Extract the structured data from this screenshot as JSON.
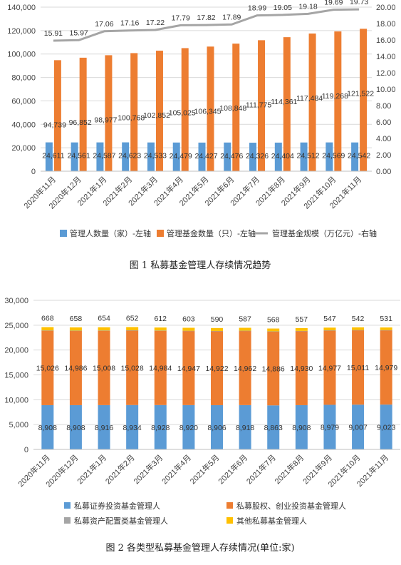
{
  "chart_data": [
    {
      "type": "bar+line",
      "title": "",
      "caption": "图 1  私募基金管理人存续情况趋势",
      "categories": [
        "2020年11月",
        "2020年12月",
        "2021年1月",
        "2021年2月",
        "2021年3月",
        "2021年4月",
        "2021年5月",
        "2021年6月",
        "2021年7月",
        "2021年8月",
        "2021年9月",
        "2021年10月",
        "2021年11月"
      ],
      "series": [
        {
          "name": "管理人数量（家）-左轴",
          "type": "bar",
          "axis": "left",
          "color": "#5B9BD5",
          "values": [
            24611,
            24561,
            24587,
            24623,
            24533,
            24479,
            24427,
            24476,
            24326,
            24404,
            24512,
            24569,
            24542
          ],
          "labels": [
            "24,611",
            "24,561",
            "24,587",
            "24,623",
            "24,533",
            "24,479",
            "24,427",
            "24,476",
            "24,326",
            "24,404",
            "24,512",
            "24,569",
            "24,542"
          ]
        },
        {
          "name": "管理基金数量（只）-左轴",
          "type": "bar",
          "axis": "left",
          "color": "#ED7D31",
          "values": [
            94739,
            96852,
            98977,
            100768,
            102852,
            105025,
            106345,
            108848,
            111775,
            114361,
            117484,
            119268,
            121522
          ],
          "labels": [
            "94,739",
            "96,852",
            "98,977",
            "100,768",
            "102,852",
            "105,025",
            "106,345",
            "108,848",
            "111,775",
            "114,361",
            "117,484",
            "119,268",
            "121,522"
          ]
        },
        {
          "name": "管理基金规模（万亿元）-右轴",
          "type": "line",
          "axis": "right",
          "color": "#A5A5A5",
          "values": [
            15.91,
            15.97,
            17.06,
            17.16,
            17.22,
            17.79,
            17.82,
            17.89,
            18.99,
            19.05,
            19.18,
            19.69,
            19.73
          ],
          "labels": [
            "15.91",
            "15.97",
            "17.06",
            "17.16",
            "17.22",
            "17.79",
            "17.82",
            "17.89",
            "18.99",
            "19.05",
            "19.18",
            "19.69",
            "19.73"
          ]
        }
      ],
      "ylim_left": [
        0,
        140000
      ],
      "yticks_left": [
        "0",
        "20,000",
        "40,000",
        "60,000",
        "80,000",
        "100,000",
        "120,000",
        "140,000"
      ],
      "ylim_right": [
        0,
        20
      ],
      "yticks_right": [
        "0.00",
        "2.00",
        "4.00",
        "6.00",
        "8.00",
        "10.00",
        "12.00",
        "14.00",
        "16.00",
        "18.00",
        "20.00"
      ],
      "legend_position": "bottom"
    },
    {
      "type": "stacked-bar",
      "title": "",
      "caption": "图 2  各类型私募基金管理人存续情况(单位:家)",
      "categories": [
        "2020年11月",
        "2020年12月",
        "2021年1月",
        "2021年2月",
        "2021年3月",
        "2021年4月",
        "2021年5月",
        "2021年6月",
        "2021年7月",
        "2021年8月",
        "2021年9月",
        "2021年10月",
        "2021年11月"
      ],
      "series": [
        {
          "name": "私募证券投资基金管理人",
          "color": "#5B9BD5",
          "values": [
            8908,
            8908,
            8916,
            8934,
            8928,
            8920,
            8906,
            8918,
            8863,
            8908,
            8979,
            9007,
            9023
          ],
          "labels": [
            "8,908",
            "8,908",
            "8,916",
            "8,934",
            "8,928",
            "8,920",
            "8,906",
            "8,918",
            "8,863",
            "8,908",
            "8,979",
            "9,007",
            "9,023"
          ]
        },
        {
          "name": "私募股权、创业投资基金管理人",
          "color": "#ED7D31",
          "values": [
            15026,
            14986,
            15008,
            15028,
            14984,
            14947,
            14922,
            14962,
            14886,
            14930,
            14977,
            15011,
            14979
          ],
          "labels": [
            "15,026",
            "14,986",
            "15,008",
            "15,028",
            "14,984",
            "14,947",
            "14,922",
            "14,962",
            "14,886",
            "14,930",
            "14,977",
            "15,011",
            "14,979"
          ]
        },
        {
          "name": "私募资产配置类基金管理人",
          "color": "#A5A5A5",
          "values": [
            9,
            9,
            9,
            9,
            9,
            9,
            9,
            9,
            9,
            9,
            9,
            9,
            9
          ],
          "labels": []
        },
        {
          "name": "其他私募基金管理人",
          "color": "#FFC000",
          "values": [
            668,
            658,
            654,
            652,
            612,
            603,
            590,
            587,
            568,
            557,
            547,
            542,
            531
          ],
          "labels": [
            "668",
            "658",
            "654",
            "652",
            "612",
            "603",
            "590",
            "587",
            "568",
            "557",
            "547",
            "542",
            "531"
          ]
        }
      ],
      "ylim": [
        0,
        30000
      ],
      "yticks": [
        "0",
        "5,000",
        "10,000",
        "15,000",
        "20,000",
        "25,000",
        "30,000"
      ],
      "legend_position": "bottom"
    }
  ]
}
